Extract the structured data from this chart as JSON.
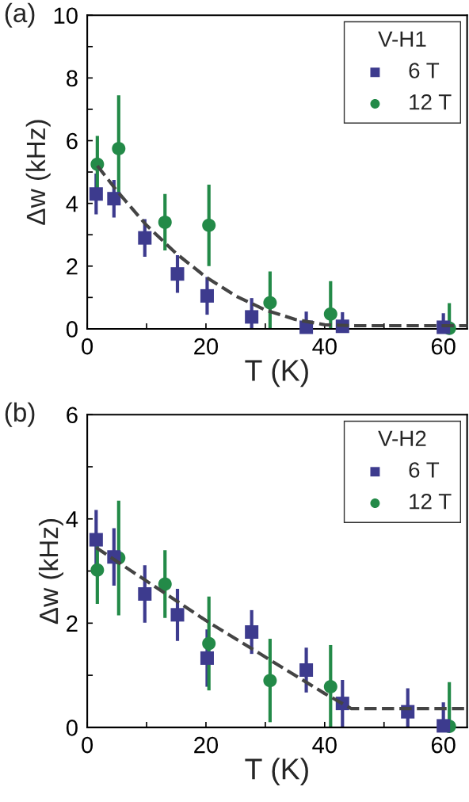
{
  "chart_data": [
    {
      "type": "scatter",
      "title": "(a)",
      "xlabel": "T (K)",
      "ylabel": "Δw (kHz)",
      "legend_title": "V-H1",
      "legend": "top right",
      "grid": false,
      "xlim": [
        0,
        64
      ],
      "xticks": [
        0,
        {
          "value": 10,
          "label": null
        },
        20,
        {
          "value": 30,
          "label": null
        },
        40,
        {
          "value": 50,
          "label": null
        },
        60
      ],
      "ylim": [
        0,
        10
      ],
      "yticks": [
        0,
        {
          "value": 1,
          "label": null
        },
        2,
        {
          "value": 3,
          "label": null
        },
        4,
        {
          "value": 5,
          "label": null
        },
        6,
        {
          "value": 7,
          "label": null
        },
        8,
        {
          "value": 9,
          "label": null
        },
        10
      ],
      "series": [
        {
          "name": "6 T",
          "color": "#3d3b8e",
          "marker": "square",
          "x": [
            1.5,
            4.5,
            9.7,
            15.2,
            20.2,
            27.7,
            36.9,
            43,
            60
          ],
          "values": [
            4.3,
            4.15,
            2.9,
            1.75,
            1.05,
            0.38,
            0.05,
            0.08,
            0.05
          ],
          "errors": [
            0.65,
            0.6,
            0.6,
            0.6,
            0.6,
            0.6,
            0.5,
            0.45,
            0.45
          ]
        },
        {
          "name": "12 T",
          "color": "#238a48",
          "marker": "circle",
          "x": [
            1.7,
            5.3,
            13.1,
            20.5,
            30.8,
            41,
            61
          ],
          "values": [
            5.25,
            5.75,
            3.4,
            3.3,
            0.83,
            0.47,
            0.02
          ],
          "errors": [
            0.9,
            1.7,
            0.9,
            1.3,
            1.0,
            1.05,
            0.8
          ]
        },
        {
          "type": "line",
          "color": "#444444",
          "line_style": "dashed",
          "marker": "none",
          "x": [
            1.7,
            5,
            10,
            15,
            20,
            25,
            30,
            35,
            40,
            45,
            64
          ],
          "values": [
            5.2,
            4.4,
            3.3,
            2.4,
            1.65,
            1.05,
            0.6,
            0.3,
            0.13,
            0.1,
            0.1
          ]
        }
      ]
    },
    {
      "type": "scatter",
      "title": "(b)",
      "xlabel": "T (K)",
      "ylabel": "Δw (kHz)",
      "legend_title": "V-H2",
      "legend": "top right",
      "grid": false,
      "xlim": [
        0,
        64
      ],
      "xticks": [
        0,
        {
          "value": 10,
          "label": null
        },
        20,
        {
          "value": 30,
          "label": null
        },
        40,
        {
          "value": 50,
          "label": null
        },
        60
      ],
      "ylim": [
        0,
        6
      ],
      "yticks": [
        0,
        {
          "value": 1,
          "label": null
        },
        2,
        {
          "value": 3,
          "label": null
        },
        4,
        {
          "value": 5,
          "label": null
        },
        6
      ],
      "series": [
        {
          "name": "6 T",
          "color": "#3d3b8e",
          "marker": "square",
          "x": [
            1.5,
            4.5,
            9.7,
            15.2,
            20.2,
            27.7,
            36.9,
            43,
            54,
            60
          ],
          "values": [
            3.6,
            3.27,
            2.56,
            2.16,
            1.33,
            1.83,
            1.1,
            0.46,
            0.3,
            0.03
          ],
          "errors": [
            0.57,
            0.55,
            0.55,
            0.5,
            0.55,
            0.42,
            0.43,
            0.45,
            0.45,
            0.45
          ]
        },
        {
          "name": "12 T",
          "color": "#238a48",
          "marker": "circle",
          "x": [
            1.7,
            5.3,
            13.1,
            20.5,
            30.8,
            41,
            61
          ],
          "values": [
            3.02,
            3.25,
            2.75,
            1.61,
            0.9,
            0.78,
            0.02
          ],
          "errors": [
            0.65,
            1.1,
            0.65,
            0.9,
            0.8,
            0.8,
            0.85
          ]
        },
        {
          "type": "line",
          "color": "#444444",
          "line_style": "dashed",
          "marker": "none",
          "x": [
            1.5,
            20,
            30,
            40,
            44.5,
            64
          ],
          "values": [
            3.45,
            2.05,
            1.35,
            0.65,
            0.36,
            0.36
          ]
        }
      ]
    }
  ]
}
